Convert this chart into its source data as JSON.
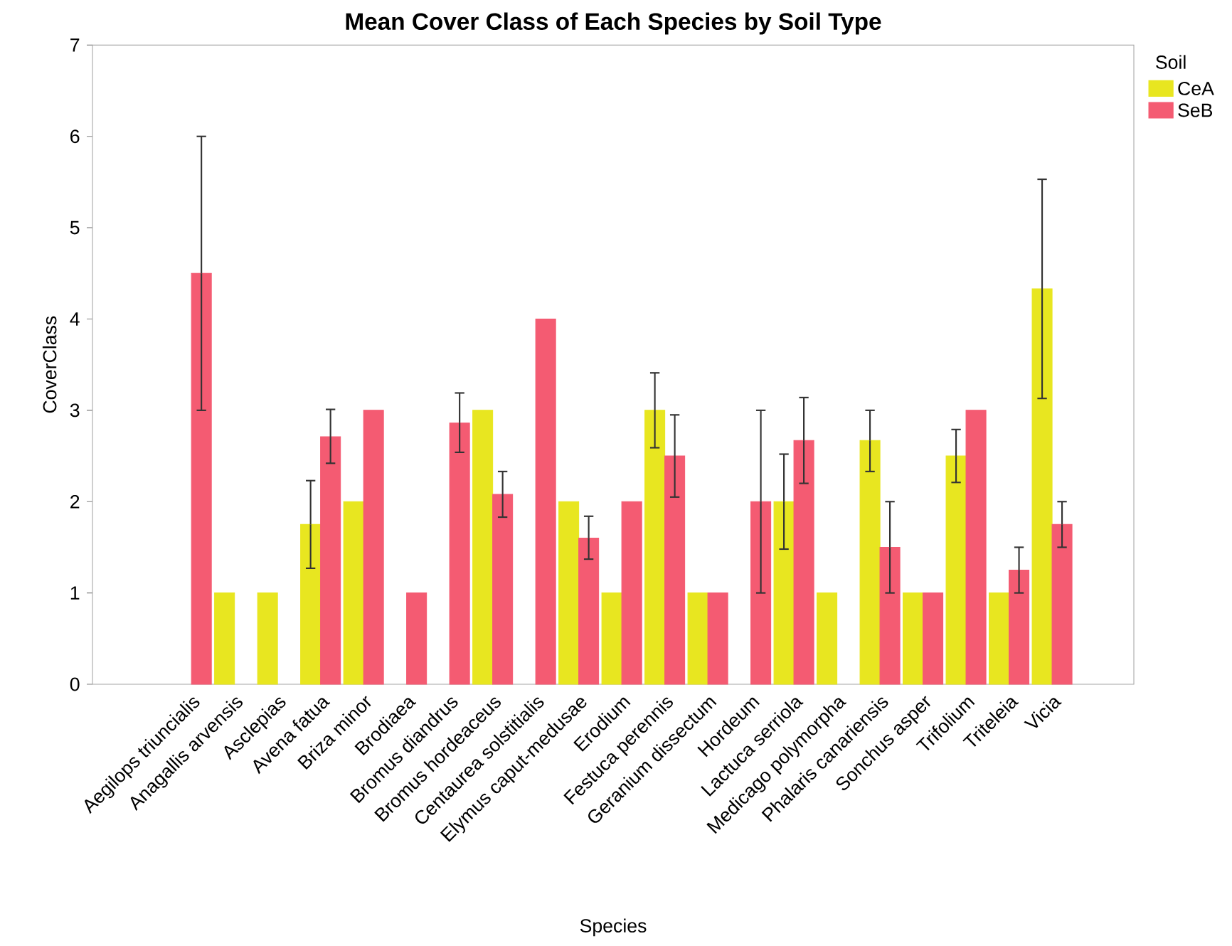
{
  "chart_data": {
    "type": "bar",
    "title": "Mean Cover Class of Each Species by Soil Type",
    "xlabel": "Species",
    "ylabel": "CoverClass",
    "legend_title": "Soil",
    "legend": "right",
    "grid": false,
    "categories": [
      "Aegilops triuncialis",
      "Anagallis arvensis",
      "Asclepias",
      "Avena fatua",
      "Briza minor",
      "Brodiaea",
      "Bromus diandrus",
      "Bromus hordeaceus",
      "Centaurea solstitialis",
      "Elymus caput-medusae",
      "Erodium",
      "Festuca perennis",
      "Geranium dissectum",
      "Hordeum",
      "Lactuca serriola",
      "Medicago polymorpha",
      "Phalaris canariensis",
      "Sonchus asper",
      "Trifolium",
      "Triteleia",
      "Vicia"
    ],
    "ylim": [
      0,
      7
    ],
    "yticks": [
      0,
      1,
      2,
      3,
      4,
      5,
      6,
      7
    ],
    "series": [
      {
        "name": "CeA",
        "color": "#e8e620",
        "values": [
          null,
          1,
          1,
          1.75,
          2,
          null,
          null,
          3,
          null,
          2,
          1,
          3,
          1,
          null,
          2,
          1,
          2.67,
          1,
          2.5,
          1,
          4.33
        ],
        "errors": [
          null,
          null,
          null,
          [
            1.27,
            2.23
          ],
          null,
          null,
          null,
          null,
          null,
          null,
          null,
          [
            2.59,
            3.41
          ],
          null,
          null,
          [
            1.48,
            2.52
          ],
          null,
          [
            2.33,
            3.0
          ],
          null,
          [
            2.21,
            2.79
          ],
          null,
          [
            3.13,
            5.53
          ]
        ]
      },
      {
        "name": "SeB",
        "color": "#f45b72",
        "values": [
          4.5,
          null,
          null,
          2.71,
          3,
          1,
          2.86,
          2.08,
          4,
          1.6,
          2,
          2.5,
          1,
          2,
          2.67,
          null,
          1.5,
          1,
          3,
          1.25,
          1.75
        ],
        "errors": [
          [
            3,
            6
          ],
          null,
          null,
          [
            2.42,
            3.01
          ],
          null,
          null,
          [
            2.54,
            3.19
          ],
          [
            1.83,
            2.33
          ],
          null,
          [
            1.37,
            1.84
          ],
          null,
          [
            2.05,
            2.95
          ],
          null,
          [
            1,
            3
          ],
          [
            2.2,
            3.14
          ],
          null,
          [
            1,
            2
          ],
          null,
          null,
          [
            1,
            1.5
          ],
          [
            1.5,
            2
          ]
        ]
      }
    ]
  }
}
